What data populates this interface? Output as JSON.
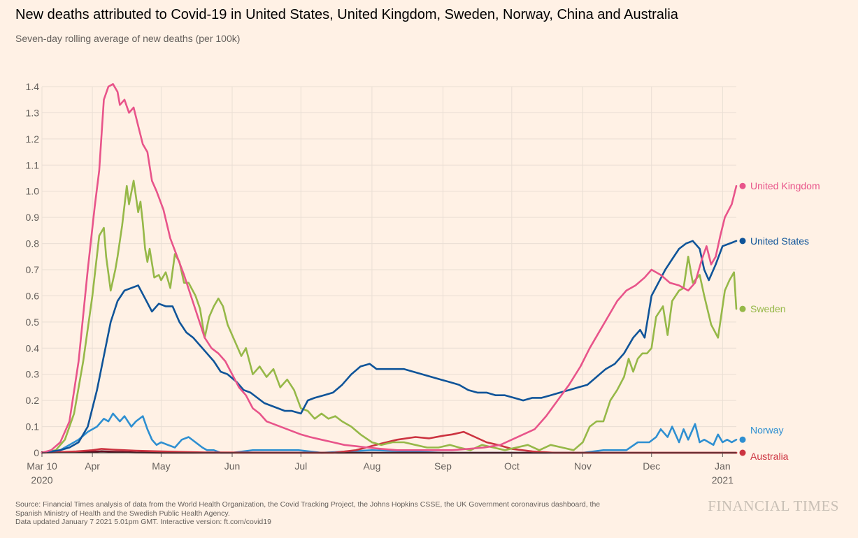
{
  "header": {
    "title": "New deaths attributed to Covid-19 in United States, United Kingdom, Sweden, Norway, China and Australia",
    "subtitle": "Seven-day rolling average of new deaths (per 100k)"
  },
  "footer": {
    "source_lines": [
      "Source: Financial Times analysis of data from the World Health Organization, the Covid Tracking Project, the Johns Hopkins CSSE, the UK Government coronavirus dashboard, the",
      "Spanish Ministry of Health and the Swedish Public Health Agency.",
      "Data updated January 7 2021 5.01pm GMT. Interactive version: ft.com/covid19"
    ],
    "brand": "FINANCIAL TIMES"
  },
  "chart_data": {
    "type": "line",
    "title": "New deaths attributed to Covid-19 in United States, United Kingdom, Sweden, Norway, China and Australia",
    "subtitle": "Seven-day rolling average of new deaths (per 100k)",
    "xlabel": "",
    "ylabel": "",
    "xlim": [
      "2020-03-10",
      "2021-01-07"
    ],
    "ylim": [
      0,
      1.4
    ],
    "y_ticks": [
      0,
      0.1,
      0.2,
      0.3,
      0.4,
      0.5,
      0.6,
      0.7,
      0.8,
      0.9,
      1.0,
      1.1,
      1.2,
      1.3,
      1.4
    ],
    "y_tick_labels": [
      "0",
      "0.1",
      "0.2",
      "0.3",
      "0.4",
      "0.5",
      "0.6",
      "0.7",
      "0.8",
      "0.9",
      "1.0",
      "1.1",
      "1.2",
      "1.3",
      "1.4"
    ],
    "x_ticks": [
      {
        "date": "2020-03-10",
        "label": "Mar 10",
        "label2": "2020"
      },
      {
        "date": "2020-04-01",
        "label": "Apr",
        "label2": ""
      },
      {
        "date": "2020-05-01",
        "label": "May",
        "label2": ""
      },
      {
        "date": "2020-06-01",
        "label": "Jun",
        "label2": ""
      },
      {
        "date": "2020-07-01",
        "label": "Jul",
        "label2": ""
      },
      {
        "date": "2020-08-01",
        "label": "Aug",
        "label2": ""
      },
      {
        "date": "2020-09-01",
        "label": "Sep",
        "label2": ""
      },
      {
        "date": "2020-10-01",
        "label": "Oct",
        "label2": ""
      },
      {
        "date": "2020-11-01",
        "label": "Nov",
        "label2": ""
      },
      {
        "date": "2020-12-01",
        "label": "Dec",
        "label2": ""
      },
      {
        "date": "2021-01-01",
        "label": "Jan",
        "label2": "2021"
      }
    ],
    "grid": true,
    "legend": "direct labels at line ends",
    "series": [
      {
        "name": "Norway",
        "color": "#2e8fd1",
        "label": "Norway",
        "x": [
          "2020-03-10",
          "2020-03-18",
          "2020-03-22",
          "2020-03-26",
          "2020-03-30",
          "2020-04-03",
          "2020-04-06",
          "2020-04-08",
          "2020-04-10",
          "2020-04-13",
          "2020-04-15",
          "2020-04-18",
          "2020-04-20",
          "2020-04-23",
          "2020-04-25",
          "2020-04-27",
          "2020-04-29",
          "2020-05-01",
          "2020-05-04",
          "2020-05-07",
          "2020-05-10",
          "2020-05-13",
          "2020-05-16",
          "2020-05-19",
          "2020-05-21",
          "2020-05-24",
          "2020-05-27",
          "2020-06-01",
          "2020-06-10",
          "2020-06-20",
          "2020-06-30",
          "2020-07-10",
          "2020-08-01",
          "2020-09-01",
          "2020-10-01",
          "2020-10-15",
          "2020-11-01",
          "2020-11-10",
          "2020-11-20",
          "2020-11-25",
          "2020-11-30",
          "2020-12-03",
          "2020-12-05",
          "2020-12-08",
          "2020-12-10",
          "2020-12-13",
          "2020-12-15",
          "2020-12-17",
          "2020-12-20",
          "2020-12-22",
          "2020-12-24",
          "2020-12-26",
          "2020-12-28",
          "2020-12-30",
          "2021-01-01",
          "2021-01-03",
          "2021-01-05",
          "2021-01-07"
        ],
        "values": [
          0,
          0.01,
          0.03,
          0.05,
          0.08,
          0.1,
          0.13,
          0.12,
          0.15,
          0.12,
          0.14,
          0.1,
          0.12,
          0.14,
          0.09,
          0.05,
          0.03,
          0.04,
          0.03,
          0.02,
          0.05,
          0.06,
          0.04,
          0.02,
          0.01,
          0.01,
          0.0,
          0.0,
          0.01,
          0.01,
          0.01,
          0.0,
          0.01,
          0.0,
          0.0,
          0.0,
          0.0,
          0.01,
          0.01,
          0.04,
          0.04,
          0.06,
          0.09,
          0.06,
          0.1,
          0.04,
          0.09,
          0.05,
          0.11,
          0.04,
          0.05,
          0.04,
          0.03,
          0.07,
          0.04,
          0.05,
          0.04,
          0.05
        ]
      },
      {
        "name": "China",
        "color": "#660e20",
        "label": "",
        "x": [
          "2020-03-10",
          "2020-03-31",
          "2020-04-05",
          "2020-04-10",
          "2020-04-20",
          "2020-05-01",
          "2021-01-07"
        ],
        "values": [
          0.002,
          0.003,
          0.006,
          0.004,
          0.001,
          0.0,
          0.0
        ]
      },
      {
        "name": "Australia",
        "color": "#cc3340",
        "label": "Australia",
        "x": [
          "2020-03-10",
          "2020-03-25",
          "2020-04-01",
          "2020-04-05",
          "2020-04-10",
          "2020-04-15",
          "2020-04-20",
          "2020-05-01",
          "2020-05-20",
          "2020-07-15",
          "2020-07-25",
          "2020-08-05",
          "2020-08-12",
          "2020-08-20",
          "2020-08-26",
          "2020-09-01",
          "2020-09-05",
          "2020-09-10",
          "2020-09-15",
          "2020-09-20",
          "2020-09-25",
          "2020-10-01",
          "2020-10-10",
          "2020-10-20",
          "2021-01-07"
        ],
        "values": [
          0,
          0.005,
          0.01,
          0.015,
          0.012,
          0.01,
          0.008,
          0.005,
          0.001,
          0.0,
          0.01,
          0.035,
          0.05,
          0.06,
          0.055,
          0.065,
          0.07,
          0.08,
          0.06,
          0.04,
          0.03,
          0.015,
          0.005,
          0.0,
          0.0
        ]
      },
      {
        "name": "Sweden",
        "color": "#96b848",
        "label": "Sweden",
        "x": [
          "2020-03-10",
          "2020-03-16",
          "2020-03-20",
          "2020-03-24",
          "2020-03-28",
          "2020-04-01",
          "2020-04-04",
          "2020-04-06",
          "2020-04-07",
          "2020-04-09",
          "2020-04-11",
          "2020-04-12",
          "2020-04-14",
          "2020-04-16",
          "2020-04-17",
          "2020-04-19",
          "2020-04-20",
          "2020-04-21",
          "2020-04-22",
          "2020-04-23",
          "2020-04-24",
          "2020-04-25",
          "2020-04-26",
          "2020-04-28",
          "2020-04-30",
          "2020-05-01",
          "2020-05-03",
          "2020-05-05",
          "2020-05-07",
          "2020-05-09",
          "2020-05-11",
          "2020-05-13",
          "2020-05-16",
          "2020-05-18",
          "2020-05-20",
          "2020-05-22",
          "2020-05-24",
          "2020-05-26",
          "2020-05-28",
          "2020-05-30",
          "2020-06-02",
          "2020-06-05",
          "2020-06-07",
          "2020-06-10",
          "2020-06-13",
          "2020-06-16",
          "2020-06-19",
          "2020-06-22",
          "2020-06-25",
          "2020-06-28",
          "2020-07-01",
          "2020-07-04",
          "2020-07-07",
          "2020-07-10",
          "2020-07-13",
          "2020-07-16",
          "2020-07-19",
          "2020-07-23",
          "2020-07-27",
          "2020-08-01",
          "2020-08-05",
          "2020-08-10",
          "2020-08-15",
          "2020-08-20",
          "2020-08-25",
          "2020-08-30",
          "2020-09-04",
          "2020-09-08",
          "2020-09-13",
          "2020-09-18",
          "2020-09-23",
          "2020-09-28",
          "2020-10-03",
          "2020-10-08",
          "2020-10-13",
          "2020-10-18",
          "2020-10-23",
          "2020-10-28",
          "2020-11-01",
          "2020-11-04",
          "2020-11-07",
          "2020-11-10",
          "2020-11-13",
          "2020-11-16",
          "2020-11-19",
          "2020-11-21",
          "2020-11-23",
          "2020-11-25",
          "2020-11-27",
          "2020-11-29",
          "2020-12-01",
          "2020-12-03",
          "2020-12-06",
          "2020-12-08",
          "2020-12-10",
          "2020-12-13",
          "2020-12-15",
          "2020-12-17",
          "2020-12-19",
          "2020-12-22",
          "2020-12-24",
          "2020-12-27",
          "2020-12-30",
          "2021-01-02",
          "2021-01-04",
          "2021-01-06",
          "2021-01-07"
        ],
        "values": [
          0,
          0.01,
          0.05,
          0.15,
          0.35,
          0.6,
          0.83,
          0.86,
          0.75,
          0.62,
          0.7,
          0.75,
          0.87,
          1.02,
          0.95,
          1.04,
          0.98,
          0.92,
          0.96,
          0.88,
          0.78,
          0.73,
          0.78,
          0.67,
          0.68,
          0.66,
          0.69,
          0.63,
          0.76,
          0.73,
          0.65,
          0.65,
          0.6,
          0.55,
          0.44,
          0.52,
          0.56,
          0.59,
          0.56,
          0.49,
          0.43,
          0.37,
          0.4,
          0.3,
          0.33,
          0.29,
          0.32,
          0.25,
          0.28,
          0.24,
          0.17,
          0.16,
          0.13,
          0.15,
          0.13,
          0.14,
          0.12,
          0.1,
          0.07,
          0.04,
          0.03,
          0.04,
          0.04,
          0.03,
          0.02,
          0.02,
          0.03,
          0.02,
          0.01,
          0.03,
          0.02,
          0.01,
          0.02,
          0.03,
          0.01,
          0.03,
          0.02,
          0.01,
          0.04,
          0.1,
          0.12,
          0.12,
          0.2,
          0.24,
          0.29,
          0.36,
          0.31,
          0.36,
          0.38,
          0.38,
          0.4,
          0.52,
          0.56,
          0.45,
          0.58,
          0.62,
          0.63,
          0.75,
          0.65,
          0.68,
          0.6,
          0.49,
          0.44,
          0.62,
          0.66,
          0.69,
          0.55
        ]
      },
      {
        "name": "United States",
        "color": "#0f5499",
        "label": "United States",
        "x": [
          "2020-03-10",
          "2020-03-18",
          "2020-03-22",
          "2020-03-26",
          "2020-03-30",
          "2020-04-03",
          "2020-04-06",
          "2020-04-09",
          "2020-04-12",
          "2020-04-15",
          "2020-04-18",
          "2020-04-21",
          "2020-04-24",
          "2020-04-27",
          "2020-04-30",
          "2020-05-03",
          "2020-05-06",
          "2020-05-09",
          "2020-05-12",
          "2020-05-15",
          "2020-05-18",
          "2020-05-21",
          "2020-05-24",
          "2020-05-27",
          "2020-05-30",
          "2020-06-03",
          "2020-06-06",
          "2020-06-09",
          "2020-06-12",
          "2020-06-15",
          "2020-06-18",
          "2020-06-21",
          "2020-06-24",
          "2020-06-27",
          "2020-07-01",
          "2020-07-04",
          "2020-07-07",
          "2020-07-11",
          "2020-07-15",
          "2020-07-19",
          "2020-07-23",
          "2020-07-27",
          "2020-07-31",
          "2020-08-03",
          "2020-08-07",
          "2020-08-11",
          "2020-08-15",
          "2020-08-19",
          "2020-08-23",
          "2020-08-27",
          "2020-08-31",
          "2020-09-04",
          "2020-09-08",
          "2020-09-12",
          "2020-09-16",
          "2020-09-20",
          "2020-09-24",
          "2020-09-28",
          "2020-10-02",
          "2020-10-06",
          "2020-10-10",
          "2020-10-14",
          "2020-10-18",
          "2020-10-22",
          "2020-10-26",
          "2020-10-30",
          "2020-11-03",
          "2020-11-07",
          "2020-11-11",
          "2020-11-15",
          "2020-11-19",
          "2020-11-23",
          "2020-11-26",
          "2020-11-28",
          "2020-12-01",
          "2020-12-04",
          "2020-12-07",
          "2020-12-10",
          "2020-12-13",
          "2020-12-16",
          "2020-12-19",
          "2020-12-22",
          "2020-12-24",
          "2020-12-26",
          "2020-12-29",
          "2021-01-01",
          "2021-01-04",
          "2021-01-07"
        ],
        "values": [
          0,
          0.01,
          0.02,
          0.04,
          0.1,
          0.24,
          0.37,
          0.5,
          0.58,
          0.62,
          0.63,
          0.64,
          0.59,
          0.54,
          0.57,
          0.56,
          0.56,
          0.5,
          0.46,
          0.44,
          0.41,
          0.38,
          0.35,
          0.31,
          0.3,
          0.27,
          0.24,
          0.23,
          0.21,
          0.19,
          0.18,
          0.17,
          0.16,
          0.16,
          0.15,
          0.2,
          0.21,
          0.22,
          0.23,
          0.26,
          0.3,
          0.33,
          0.34,
          0.32,
          0.32,
          0.32,
          0.32,
          0.31,
          0.3,
          0.29,
          0.28,
          0.27,
          0.26,
          0.24,
          0.23,
          0.23,
          0.22,
          0.22,
          0.21,
          0.2,
          0.21,
          0.21,
          0.22,
          0.23,
          0.24,
          0.25,
          0.26,
          0.29,
          0.32,
          0.34,
          0.38,
          0.44,
          0.47,
          0.44,
          0.6,
          0.65,
          0.7,
          0.74,
          0.78,
          0.8,
          0.81,
          0.78,
          0.7,
          0.66,
          0.72,
          0.79,
          0.8,
          0.81
        ]
      },
      {
        "name": "United Kingdom",
        "color": "#e8548a",
        "label": "United Kingdom",
        "x": [
          "2020-03-10",
          "2020-03-14",
          "2020-03-18",
          "2020-03-22",
          "2020-03-26",
          "2020-03-30",
          "2020-04-02",
          "2020-04-04",
          "2020-04-06",
          "2020-04-08",
          "2020-04-10",
          "2020-04-12",
          "2020-04-13",
          "2020-04-15",
          "2020-04-17",
          "2020-04-19",
          "2020-04-21",
          "2020-04-23",
          "2020-04-25",
          "2020-04-27",
          "2020-04-29",
          "2020-05-02",
          "2020-05-05",
          "2020-05-08",
          "2020-05-11",
          "2020-05-14",
          "2020-05-17",
          "2020-05-20",
          "2020-05-23",
          "2020-05-26",
          "2020-05-29",
          "2020-06-01",
          "2020-06-04",
          "2020-06-07",
          "2020-06-10",
          "2020-06-13",
          "2020-06-16",
          "2020-06-19",
          "2020-06-22",
          "2020-06-25",
          "2020-06-28",
          "2020-07-01",
          "2020-07-05",
          "2020-07-10",
          "2020-07-15",
          "2020-07-20",
          "2020-07-25",
          "2020-07-30",
          "2020-08-05",
          "2020-08-12",
          "2020-08-20",
          "2020-08-28",
          "2020-09-05",
          "2020-09-12",
          "2020-09-19",
          "2020-09-26",
          "2020-10-01",
          "2020-10-06",
          "2020-10-11",
          "2020-10-16",
          "2020-10-21",
          "2020-10-26",
          "2020-10-31",
          "2020-11-04",
          "2020-11-08",
          "2020-11-12",
          "2020-11-16",
          "2020-11-20",
          "2020-11-24",
          "2020-11-28",
          "2020-12-01",
          "2020-12-05",
          "2020-12-09",
          "2020-12-13",
          "2020-12-17",
          "2020-12-20",
          "2020-12-23",
          "2020-12-25",
          "2020-12-27",
          "2020-12-29",
          "2020-12-31",
          "2021-01-02",
          "2021-01-05",
          "2021-01-07"
        ],
        "values": [
          0,
          0.01,
          0.04,
          0.12,
          0.35,
          0.7,
          0.94,
          1.08,
          1.35,
          1.4,
          1.41,
          1.38,
          1.33,
          1.35,
          1.3,
          1.32,
          1.25,
          1.18,
          1.15,
          1.04,
          1.0,
          0.93,
          0.82,
          0.75,
          0.68,
          0.6,
          0.52,
          0.44,
          0.4,
          0.38,
          0.35,
          0.3,
          0.25,
          0.22,
          0.17,
          0.15,
          0.12,
          0.11,
          0.1,
          0.09,
          0.08,
          0.07,
          0.06,
          0.05,
          0.04,
          0.03,
          0.025,
          0.02,
          0.015,
          0.01,
          0.01,
          0.01,
          0.01,
          0.015,
          0.02,
          0.03,
          0.05,
          0.07,
          0.09,
          0.14,
          0.2,
          0.26,
          0.33,
          0.4,
          0.46,
          0.52,
          0.58,
          0.62,
          0.64,
          0.67,
          0.7,
          0.68,
          0.65,
          0.64,
          0.62,
          0.65,
          0.74,
          0.79,
          0.72,
          0.75,
          0.83,
          0.9,
          0.95,
          1.02
        ]
      }
    ]
  }
}
